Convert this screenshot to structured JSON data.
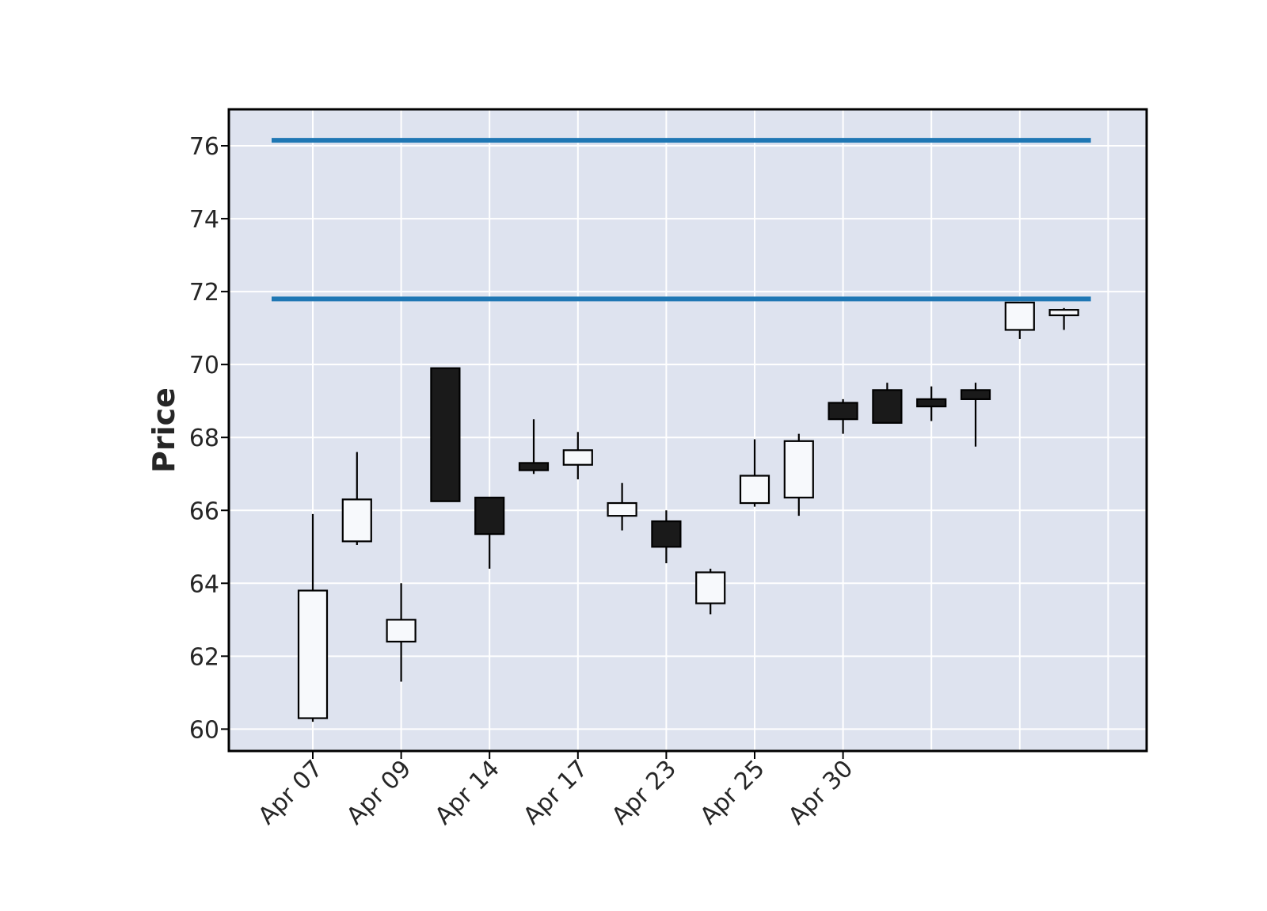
{
  "chart_data": {
    "type": "candlestick",
    "ylabel": "Price",
    "ylim": [
      59.4,
      77.0
    ],
    "yticks": [
      60,
      62,
      64,
      66,
      68,
      70,
      72,
      74,
      76
    ],
    "x_tick_labels": [
      "Apr 07",
      "Apr 09",
      "Apr 14",
      "Apr 17",
      "Apr 23",
      "Apr 25",
      "Apr 30"
    ],
    "x_tick_indices": [
      0,
      2,
      4,
      6,
      8,
      10,
      12
    ],
    "grid": true,
    "background": "#dee3ef",
    "up_color": "#f7f9fc",
    "down_color": "#1a1a1a",
    "hline_color": "#1f77b4",
    "hlines": [
      76.15,
      71.8
    ],
    "candles": [
      {
        "o": 60.3,
        "h": 65.9,
        "l": 60.2,
        "c": 63.8
      },
      {
        "o": 65.15,
        "h": 67.6,
        "l": 65.05,
        "c": 66.3
      },
      {
        "o": 62.4,
        "h": 64.0,
        "l": 61.3,
        "c": 63.0
      },
      {
        "o": 69.9,
        "h": 69.9,
        "l": 66.25,
        "c": 66.25
      },
      {
        "o": 66.35,
        "h": 66.35,
        "l": 64.4,
        "c": 65.35
      },
      {
        "o": 67.3,
        "h": 68.5,
        "l": 67.0,
        "c": 67.1
      },
      {
        "o": 67.25,
        "h": 68.15,
        "l": 66.85,
        "c": 67.65
      },
      {
        "o": 65.85,
        "h": 66.75,
        "l": 65.45,
        "c": 66.2
      },
      {
        "o": 65.7,
        "h": 66.0,
        "l": 64.55,
        "c": 65.0
      },
      {
        "o": 63.45,
        "h": 64.4,
        "l": 63.15,
        "c": 64.3
      },
      {
        "o": 66.2,
        "h": 67.95,
        "l": 66.1,
        "c": 66.95
      },
      {
        "o": 66.35,
        "h": 68.1,
        "l": 65.85,
        "c": 67.9
      },
      {
        "o": 68.95,
        "h": 69.05,
        "l": 68.1,
        "c": 68.5
      },
      {
        "o": 69.3,
        "h": 69.5,
        "l": 68.4,
        "c": 68.4
      },
      {
        "o": 69.05,
        "h": 69.4,
        "l": 68.45,
        "c": 68.85
      },
      {
        "o": 69.3,
        "h": 69.5,
        "l": 67.75,
        "c": 69.05
      },
      {
        "o": 70.95,
        "h": 71.7,
        "l": 70.7,
        "c": 71.7
      },
      {
        "o": 71.35,
        "h": 71.55,
        "l": 70.95,
        "c": 71.5
      }
    ]
  }
}
